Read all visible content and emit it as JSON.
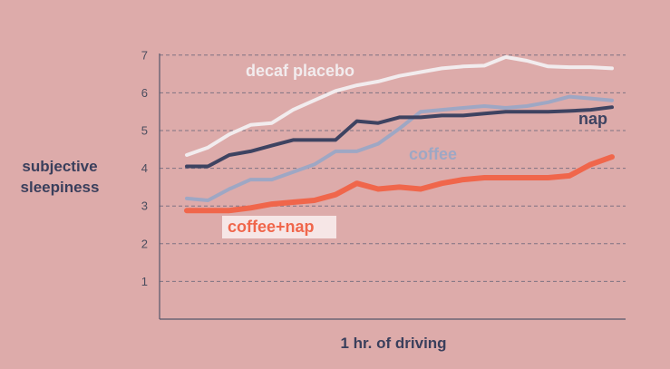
{
  "chart_data": {
    "type": "line",
    "title": "",
    "xlabel": "1 hr. of driving",
    "ylabel": "subjective sleepiness",
    "ylabel_lines": [
      "subjective",
      "sleepiness"
    ],
    "yticks": [
      1,
      2,
      3,
      4,
      5,
      6,
      7
    ],
    "ylim": [
      0,
      7.2
    ],
    "xlim": [
      0,
      1
    ],
    "grid": "horizontal-dashed",
    "legend": "inline labels",
    "x": [
      0,
      0.05,
      0.1,
      0.15,
      0.2,
      0.25,
      0.3,
      0.35,
      0.4,
      0.45,
      0.5,
      0.55,
      0.6,
      0.65,
      0.7,
      0.75,
      0.8,
      0.85,
      0.9,
      0.95,
      1.0
    ],
    "series": [
      {
        "name": "decaf placebo",
        "color": "#f2ecee",
        "values": [
          4.35,
          4.55,
          4.9,
          5.15,
          5.2,
          5.55,
          5.8,
          6.05,
          6.2,
          6.3,
          6.45,
          6.55,
          6.65,
          6.7,
          6.72,
          6.95,
          6.85,
          6.7,
          6.68,
          6.68,
          6.65
        ],
        "label_emphasis": false
      },
      {
        "name": "nap",
        "color": "#3e4361",
        "values": [
          4.05,
          4.05,
          4.35,
          4.45,
          4.6,
          4.75,
          4.75,
          4.75,
          5.25,
          5.2,
          5.35,
          5.35,
          5.4,
          5.4,
          5.45,
          5.5,
          5.5,
          5.5,
          5.52,
          5.55,
          5.62
        ],
        "label_emphasis": false
      },
      {
        "name": "coffee",
        "color": "#9ea7c4",
        "values": [
          3.2,
          3.15,
          3.45,
          3.7,
          3.7,
          3.9,
          4.1,
          4.45,
          4.45,
          4.65,
          5.05,
          5.5,
          5.55,
          5.6,
          5.65,
          5.6,
          5.65,
          5.75,
          5.9,
          5.85,
          5.8
        ],
        "label_emphasis": false
      },
      {
        "name": "coffee+nap",
        "color": "#f0664b",
        "values": [
          2.88,
          2.88,
          2.88,
          2.95,
          3.05,
          3.1,
          3.15,
          3.3,
          3.6,
          3.45,
          3.5,
          3.45,
          3.6,
          3.7,
          3.75,
          3.75,
          3.75,
          3.75,
          3.8,
          4.1,
          4.3
        ],
        "label_emphasis": true
      }
    ]
  }
}
